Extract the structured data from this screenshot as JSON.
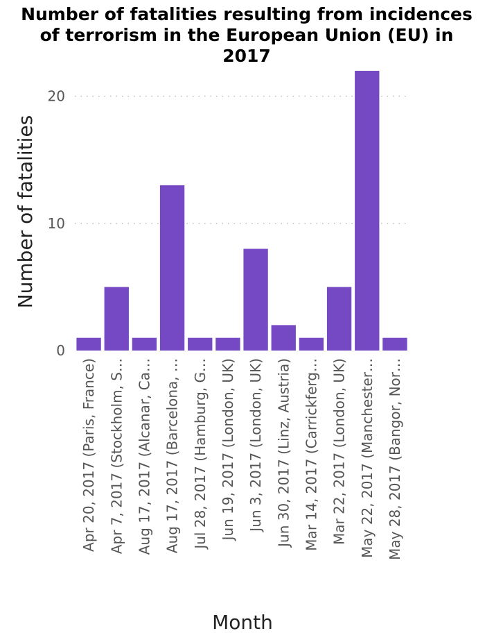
{
  "chart_data": {
    "type": "bar",
    "title_lines": [
      "Number of fatalities resulting from incidences",
      "of terrorism in the European Union (EU) in",
      "2017"
    ],
    "xlabel": "Month",
    "ylabel": "Number of fatalities",
    "ylim": [
      0,
      22
    ],
    "yticks": [
      0,
      10,
      20
    ],
    "grid": "horizontal dotted",
    "bar_color": "#7549c4",
    "categories": [
      "Apr 20, 2017  (Paris, France)",
      "Apr 7, 2017  (Stockholm, S…",
      "Aug 17, 2017  (Alcanar, Ca…",
      "Aug 17, 2017  (Barcelona, …",
      "Jul 28, 2017  (Hamburg, G…",
      "Jun 19, 2017  (London, UK)",
      "Jun 3, 2017  (London, UK)",
      "Jun 30, 2017  (Linz, Austria)",
      "Mar 14, 2017  (Carrickferg…",
      "Mar 22, 2017  (London, UK)",
      "May 22, 2017  (Manchester…",
      "May 28, 2017  (Bangor, Nor…"
    ],
    "values": [
      1,
      5,
      1,
      13,
      1,
      1,
      8,
      2,
      1,
      5,
      22,
      1
    ]
  }
}
